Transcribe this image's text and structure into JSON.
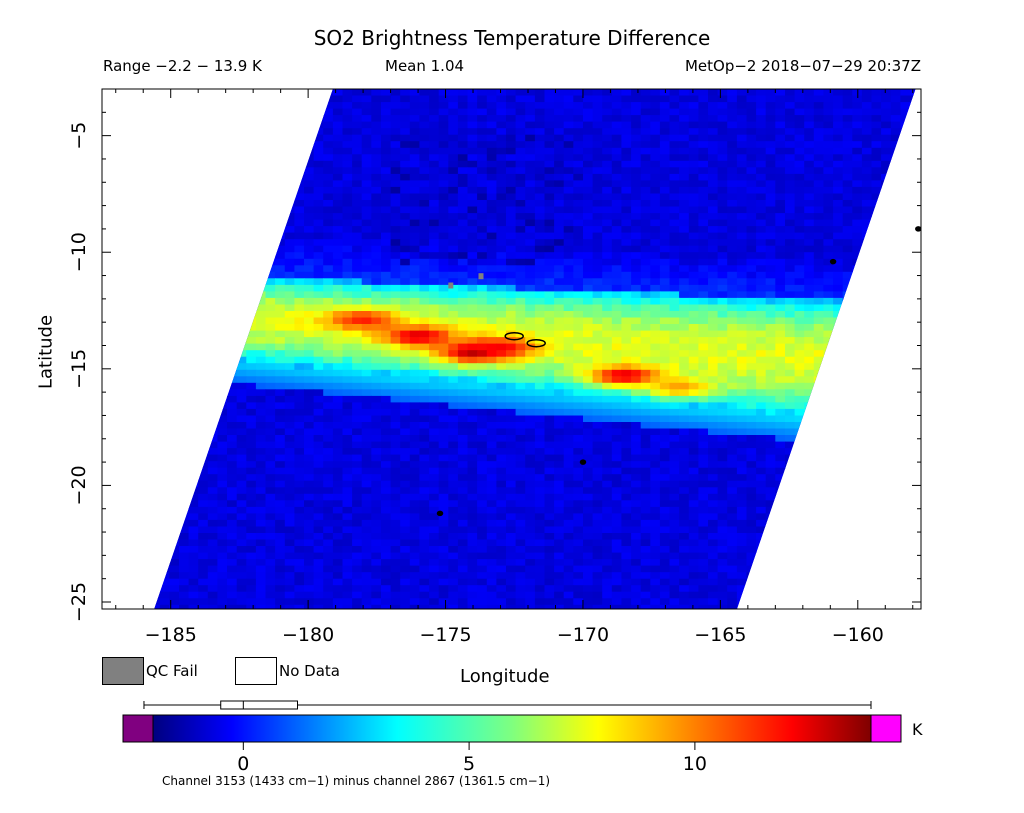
{
  "header": {
    "title": "SO2 Brightness Temperature Difference",
    "range": "Range −2.2 − 13.9 K",
    "mean": "Mean 1.04",
    "satellite_time": "MetOp−2 2018−07−29 20:37Z"
  },
  "legend": {
    "qc_fail": "QC Fail",
    "no_data": "No Data",
    "qc_color": "#808080",
    "nodata_color": "#ffffff"
  },
  "colorbar": {
    "unit": "K",
    "ticks": [
      "0",
      "5",
      "10"
    ],
    "tick_values": [
      0,
      5,
      10
    ],
    "range": [
      -2.0,
      13.9
    ],
    "under_color": "#800080",
    "over_color": "#ff00ff",
    "footnote": "Channel 3153 (1433 cm−1) minus channel 2867 (1361.5 cm−1)",
    "boxplot": {
      "whisker_low": -2.2,
      "q1": -0.5,
      "median": 0.0,
      "q3": 1.2,
      "whisker_high": 13.9
    }
  },
  "chart_data": {
    "type": "heatmap",
    "title": "SO2 Brightness Temperature Difference",
    "xlabel": "Longitude",
    "ylabel": "Latitude",
    "xlim": [
      -187.5,
      -157.7
    ],
    "ylim": [
      -25.3,
      -3.0
    ],
    "xticks": [
      -185,
      -180,
      -175,
      -170,
      -165,
      -160
    ],
    "xtick_labels": [
      "−185",
      "−180",
      "−175",
      "−170",
      "−165",
      "−160"
    ],
    "yticks": [
      -5,
      -10,
      -15,
      -20,
      -25
    ],
    "ytick_labels": [
      "−5",
      "−10",
      "−15",
      "−20",
      "−25"
    ],
    "colormap": "jet",
    "value_range_K": [
      -2.2,
      13.9
    ],
    "mean_K": 1.04,
    "swath_corners": {
      "top_left": [
        -179.1,
        -3.0
      ],
      "top_right": [
        -157.9,
        -3.0
      ],
      "bottom_right": [
        -164.4,
        -25.3
      ],
      "bottom_left": [
        -185.6,
        -25.3
      ]
    },
    "background_K": -0.5,
    "plume_band": {
      "description": "Elevated SO2 band oriented WNW-ESE",
      "north_edge": [
        [
          -181.5,
          -11.1
        ],
        [
          -162.8,
          -12.0
        ]
      ],
      "south_edge": [
        [
          -182.9,
          -14.6
        ],
        [
          -163.8,
          -16.9
        ]
      ],
      "band_value_K": 6.0
    },
    "hotspots": [
      {
        "lon": -178.0,
        "lat": -12.9,
        "value_K": 11.5
      },
      {
        "lon": -176.0,
        "lat": -13.6,
        "value_K": 12.5
      },
      {
        "lon": -174.0,
        "lat": -14.3,
        "value_K": 13.0
      },
      {
        "lon": -173.0,
        "lat": -14.1,
        "value_K": 12.0
      },
      {
        "lon": -168.5,
        "lat": -15.3,
        "value_K": 12.5
      },
      {
        "lon": -166.5,
        "lat": -15.8,
        "value_K": 9.5
      }
    ],
    "noise_region": {
      "lon_range": [
        -177,
        -170
      ],
      "lat_range": [
        -10.5,
        -5
      ],
      "value_K": -1.5
    },
    "islands": [
      {
        "name": "",
        "lon": -172.5,
        "lat": -13.6
      },
      {
        "name": "",
        "lon": -171.7,
        "lat": -13.9
      },
      {
        "name": "",
        "lon": -170.0,
        "lat": -19.0
      },
      {
        "name": "",
        "lon": -175.2,
        "lat": -21.2
      },
      {
        "name": "",
        "lon": -160.9,
        "lat": -10.4
      },
      {
        "name": "",
        "lon": -157.8,
        "lat": -9.0
      }
    ],
    "qc_fail_pixels": [
      {
        "lon": -174.9,
        "lat": -11.3
      },
      {
        "lon": -173.8,
        "lat": -10.9
      }
    ]
  }
}
